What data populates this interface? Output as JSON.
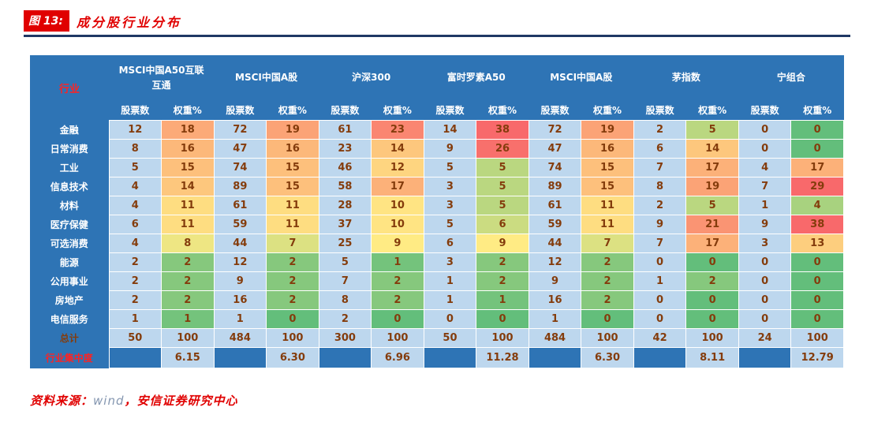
{
  "title": {
    "figure_label": "图 13:",
    "text": "成分股行业分布"
  },
  "source": {
    "prefix": "资料来源：",
    "wind": "wind",
    "suffix": "，安信证券研究中心"
  },
  "colors": {
    "title_red": "#e00000",
    "label_red": "#ff2222",
    "underline_navy": "#1f3864",
    "table_bg": "#2e74b5",
    "light_cell": "#bdd7ee",
    "cell_text_brown": "#843c0c",
    "header_text": "#ffffff",
    "wind_gray": "#8496b0",
    "heat_min_green": "#63be7b",
    "heat_mid_yellow": "#ffeb84",
    "heat_max_red": "#f8696b"
  },
  "chart_data": {
    "type": "heatmap",
    "title": "成分股行业分布",
    "corner_label": "行业",
    "column_groups": [
      "MSCI中国A50互联互通",
      "MSCI中国A股",
      "沪深300",
      "富时罗素A50",
      "MSCI中国A股",
      "茅指数",
      "宁组合"
    ],
    "subcolumns": {
      "count": "股票数",
      "weight": "权重%"
    },
    "rows": [
      {
        "label": "金融",
        "cells": [
          [
            12,
            18
          ],
          [
            72,
            19
          ],
          [
            61,
            23
          ],
          [
            14,
            38
          ],
          [
            72,
            19
          ],
          [
            2,
            5
          ],
          [
            0,
            0
          ]
        ]
      },
      {
        "label": "日常消费",
        "cells": [
          [
            8,
            16
          ],
          [
            47,
            16
          ],
          [
            23,
            14
          ],
          [
            9,
            26
          ],
          [
            47,
            16
          ],
          [
            6,
            14
          ],
          [
            0,
            0
          ]
        ]
      },
      {
        "label": "工业",
        "cells": [
          [
            5,
            15
          ],
          [
            74,
            15
          ],
          [
            46,
            12
          ],
          [
            5,
            5
          ],
          [
            74,
            15
          ],
          [
            7,
            17
          ],
          [
            4,
            17
          ]
        ]
      },
      {
        "label": "信息技术",
        "cells": [
          [
            4,
            14
          ],
          [
            89,
            15
          ],
          [
            58,
            17
          ],
          [
            3,
            5
          ],
          [
            89,
            15
          ],
          [
            8,
            19
          ],
          [
            7,
            29
          ]
        ]
      },
      {
        "label": "材料",
        "cells": [
          [
            4,
            11
          ],
          [
            61,
            11
          ],
          [
            28,
            10
          ],
          [
            3,
            5
          ],
          [
            61,
            11
          ],
          [
            2,
            5
          ],
          [
            1,
            4
          ]
        ]
      },
      {
        "label": "医疗保健",
        "cells": [
          [
            6,
            11
          ],
          [
            59,
            11
          ],
          [
            37,
            10
          ],
          [
            5,
            6
          ],
          [
            59,
            11
          ],
          [
            9,
            21
          ],
          [
            9,
            38
          ]
        ]
      },
      {
        "label": "可选消费",
        "cells": [
          [
            4,
            8
          ],
          [
            44,
            7
          ],
          [
            25,
            9
          ],
          [
            6,
            9
          ],
          [
            44,
            7
          ],
          [
            7,
            17
          ],
          [
            3,
            13
          ]
        ]
      },
      {
        "label": "能源",
        "cells": [
          [
            2,
            2
          ],
          [
            12,
            2
          ],
          [
            5,
            1
          ],
          [
            3,
            2
          ],
          [
            12,
            2
          ],
          [
            0,
            0
          ],
          [
            0,
            0
          ]
        ]
      },
      {
        "label": "公用事业",
        "cells": [
          [
            2,
            2
          ],
          [
            9,
            2
          ],
          [
            7,
            2
          ],
          [
            1,
            2
          ],
          [
            9,
            2
          ],
          [
            1,
            2
          ],
          [
            0,
            0
          ]
        ]
      },
      {
        "label": "房地产",
        "cells": [
          [
            2,
            2
          ],
          [
            16,
            2
          ],
          [
            8,
            2
          ],
          [
            1,
            1
          ],
          [
            16,
            2
          ],
          [
            0,
            0
          ],
          [
            0,
            0
          ]
        ]
      },
      {
        "label": "电信服务",
        "cells": [
          [
            1,
            1
          ],
          [
            1,
            0
          ],
          [
            2,
            0
          ],
          [
            0,
            0
          ],
          [
            1,
            0
          ],
          [
            0,
            0
          ],
          [
            0,
            0
          ]
        ]
      }
    ],
    "total_row": {
      "label": "总计",
      "cells": [
        [
          50,
          100
        ],
        [
          484,
          100
        ],
        [
          300,
          100
        ],
        [
          50,
          100
        ],
        [
          484,
          100
        ],
        [
          42,
          100
        ],
        [
          24,
          100
        ]
      ]
    },
    "concentration_row": {
      "label": "行业集中度",
      "values": [
        "6.15",
        "6.30",
        "6.96",
        "11.28",
        "6.30",
        "8.11",
        "12.79"
      ]
    },
    "heat_scale": {
      "applies_to": "权重%",
      "min_value": 0,
      "mid_value": 9,
      "max_value": 27,
      "min_color": "#63be7b",
      "mid_color": "#ffeb84",
      "max_color": "#f8696b"
    },
    "layout_notes": "股票数 columns use plain light-blue cells; 权重% columns use green-yellow-red heat coloring; legend none; gridlines white"
  }
}
